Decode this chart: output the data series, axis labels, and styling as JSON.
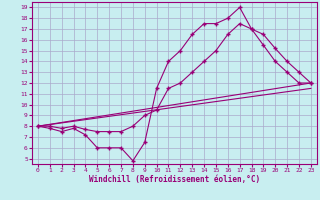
{
  "bg_color": "#c8eef0",
  "grid_color": "#aaaacc",
  "line_color": "#990077",
  "xlabel": "Windchill (Refroidissement éolien,°C)",
  "xlim": [
    -0.5,
    23.5
  ],
  "ylim": [
    4.5,
    19.5
  ],
  "yticks": [
    5,
    6,
    7,
    8,
    9,
    10,
    11,
    12,
    13,
    14,
    15,
    16,
    17,
    18,
    19
  ],
  "xticks": [
    0,
    1,
    2,
    3,
    4,
    5,
    6,
    7,
    8,
    9,
    10,
    11,
    12,
    13,
    14,
    15,
    16,
    17,
    18,
    19,
    20,
    21,
    22,
    23
  ],
  "line1_x": [
    0,
    1,
    2,
    3,
    4,
    5,
    6,
    7,
    8,
    9,
    10,
    11,
    12,
    13,
    14,
    15,
    16,
    17,
    18,
    19,
    20,
    21,
    22,
    23
  ],
  "line1_y": [
    8,
    7.8,
    7.5,
    7.8,
    7.2,
    6.0,
    6.0,
    6.0,
    4.8,
    6.5,
    11.5,
    14,
    15,
    16.5,
    17.5,
    17.5,
    18,
    19,
    17,
    15.5,
    14,
    13,
    12,
    12
  ],
  "line2_x": [
    0,
    1,
    2,
    3,
    4,
    5,
    6,
    7,
    8,
    9,
    10,
    11,
    12,
    13,
    14,
    15,
    16,
    17,
    18,
    19,
    20,
    21,
    22,
    23
  ],
  "line2_y": [
    8,
    8,
    7.8,
    8,
    7.7,
    7.5,
    7.5,
    7.5,
    8,
    9,
    9.5,
    11.5,
    12,
    13,
    14,
    15,
    16.5,
    17.5,
    17,
    16.5,
    15.2,
    14,
    13,
    12
  ],
  "line3_x": [
    0,
    23
  ],
  "line3_y": [
    8,
    12
  ],
  "line4_x": [
    0,
    23
  ],
  "line4_y": [
    8,
    11.5
  ]
}
